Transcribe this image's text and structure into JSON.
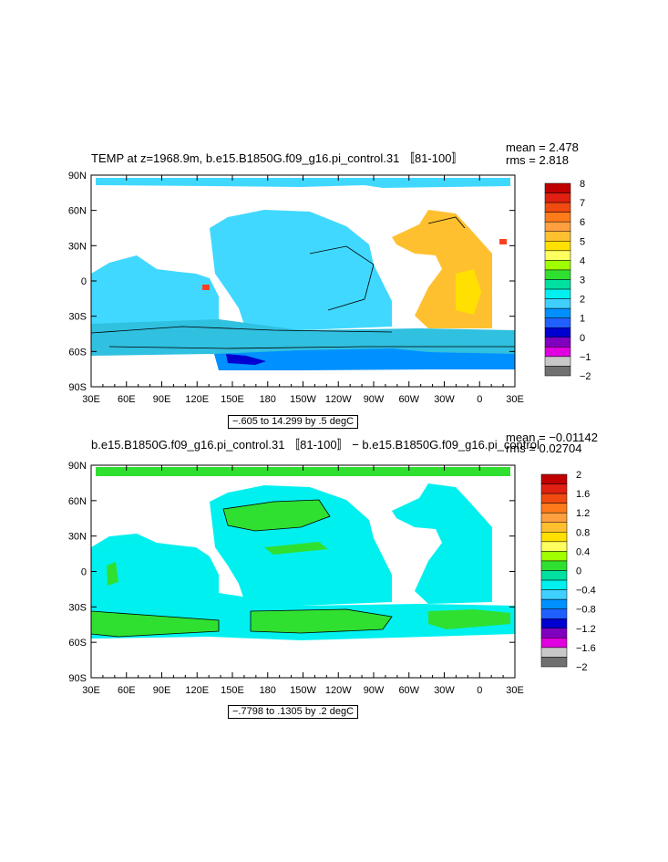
{
  "chart_data": [
    {
      "type": "heatmap",
      "title": "TEMP at z=1968.9m, b.e15.B1850G.f09_g16.pi_control.31 〚81-100〛",
      "stats": {
        "mean_label": "mean = 2.478",
        "rms_label": "rms = 2.818"
      },
      "x_ticks": [
        "30E",
        "60E",
        "90E",
        "120E",
        "150E",
        "180",
        "150W",
        "120W",
        "90W",
        "60W",
        "30W",
        "0",
        "30E"
      ],
      "y_ticks": [
        "90N",
        "60N",
        "30N",
        "0",
        "30S",
        "60S",
        "90S"
      ],
      "xlim": [
        30,
        390
      ],
      "ylim": [
        -90,
        90
      ],
      "range_label": "−.605 to 14.299 by .5 degC",
      "colorbar": {
        "labels": [
          "8",
          "7",
          "6",
          "5",
          "4",
          "3",
          "2",
          "1",
          "0",
          "−1",
          "−2"
        ],
        "colors": [
          "#c00000",
          "#e02010",
          "#f04a10",
          "#ff7a1a",
          "#ffa040",
          "#ffc030",
          "#ffe000",
          "#ffff60",
          "#a0ff00",
          "#30e030",
          "#00e0a0",
          "#00f0f0",
          "#40d0ff",
          "#0090ff",
          "#2060ff",
          "#0000d0",
          "#8000c0",
          "#e000e0",
          "#c8c8c8",
          "#707070"
        ]
      },
      "field_colors": {
        "ocean_main": "#40d8ff",
        "ocean_deep": "#0090ff",
        "south_band": "#30c0e0",
        "atlantic": "#ffc030",
        "atlantic_warm": "#ffe000",
        "hot": "#ff4020",
        "coldest": "#0000d0"
      }
    },
    {
      "type": "heatmap",
      "title": "b.e15.B1850G.f09_g16.pi_control.31 〚81-100〛 − b.e15.B1850G.f09_g16.pi_control",
      "stats": {
        "mean_label": "mean = −0.01142",
        "rms_label": "rms = 0.02704"
      },
      "x_ticks": [
        "30E",
        "60E",
        "90E",
        "120E",
        "150E",
        "180",
        "150W",
        "120W",
        "90W",
        "60W",
        "30W",
        "0",
        "30E"
      ],
      "y_ticks": [
        "90N",
        "60N",
        "30N",
        "0",
        "30S",
        "60S",
        "90S"
      ],
      "xlim": [
        30,
        390
      ],
      "ylim": [
        -90,
        90
      ],
      "range_label": "−.7798 to .1305 by .2 degC",
      "colorbar": {
        "labels": [
          "2",
          "1.6",
          "1.2",
          "0.8",
          "0.4",
          "0",
          "−0.4",
          "−0.8",
          "−1.2",
          "−1.6",
          "−2"
        ],
        "colors": [
          "#c00000",
          "#e02010",
          "#f04a10",
          "#ff7a1a",
          "#ffa040",
          "#ffc030",
          "#ffe000",
          "#ffff60",
          "#a0ff00",
          "#30e030",
          "#00e0a0",
          "#00f0f0",
          "#40d0ff",
          "#0090ff",
          "#2060ff",
          "#0000d0",
          "#8000c0",
          "#e000e0",
          "#c8c8c8",
          "#707070"
        ]
      },
      "field_colors": {
        "ocean_main": "#00f0f0",
        "positive": "#30e030"
      }
    }
  ]
}
